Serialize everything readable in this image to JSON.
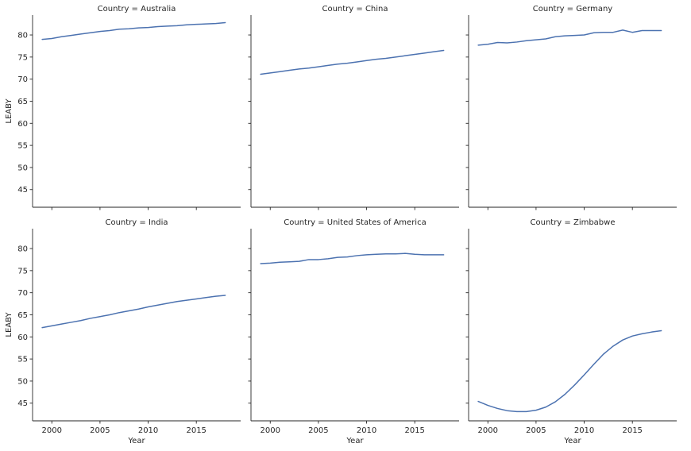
{
  "chart_data": {
    "type": "line",
    "layout": "facet-grid",
    "color": "#4c72b0",
    "xlabel": "Year",
    "ylabel": "LEABY",
    "xlim": [
      1998.0,
      2019.6
    ],
    "ylim": [
      41.0,
      84.5
    ],
    "x_ticks": [
      2000,
      2005,
      2010,
      2015
    ],
    "y_ticks": [
      45,
      50,
      55,
      60,
      65,
      70,
      75,
      80
    ],
    "grid": false,
    "facets": [
      {
        "title": "Country = Australia",
        "x": [
          1999,
          2000,
          2001,
          2002,
          2003,
          2004,
          2005,
          2006,
          2007,
          2008,
          2009,
          2010,
          2011,
          2012,
          2013,
          2014,
          2015,
          2016,
          2017,
          2018
        ],
        "y": [
          79.0,
          79.2,
          79.6,
          79.9,
          80.2,
          80.5,
          80.8,
          81.0,
          81.3,
          81.4,
          81.6,
          81.7,
          81.9,
          82.0,
          82.1,
          82.3,
          82.4,
          82.5,
          82.6,
          82.8
        ]
      },
      {
        "title": "Country = China",
        "x": [
          1999,
          2000,
          2001,
          2002,
          2003,
          2004,
          2005,
          2006,
          2007,
          2008,
          2009,
          2010,
          2011,
          2012,
          2013,
          2014,
          2015,
          2016,
          2017,
          2018
        ],
        "y": [
          71.1,
          71.4,
          71.7,
          72.0,
          72.3,
          72.5,
          72.8,
          73.1,
          73.4,
          73.6,
          73.9,
          74.2,
          74.5,
          74.7,
          75.0,
          75.3,
          75.6,
          75.9,
          76.2,
          76.5
        ]
      },
      {
        "title": "Country = Germany",
        "x": [
          1999,
          2000,
          2001,
          2002,
          2003,
          2004,
          2005,
          2006,
          2007,
          2008,
          2009,
          2010,
          2011,
          2012,
          2013,
          2014,
          2015,
          2016,
          2017,
          2018
        ],
        "y": [
          77.7,
          77.9,
          78.3,
          78.2,
          78.4,
          78.7,
          78.9,
          79.1,
          79.6,
          79.8,
          79.9,
          80.0,
          80.5,
          80.6,
          80.6,
          81.1,
          80.6,
          81.0,
          81.0,
          81.0
        ]
      },
      {
        "title": "Country = India",
        "x": [
          1999,
          2000,
          2001,
          2002,
          2003,
          2004,
          2005,
          2006,
          2007,
          2008,
          2009,
          2010,
          2011,
          2012,
          2013,
          2014,
          2015,
          2016,
          2017,
          2018
        ],
        "y": [
          62.1,
          62.5,
          62.9,
          63.3,
          63.7,
          64.2,
          64.6,
          65.0,
          65.5,
          65.9,
          66.3,
          66.8,
          67.2,
          67.6,
          68.0,
          68.3,
          68.6,
          68.9,
          69.2,
          69.4
        ]
      },
      {
        "title": "Country = United States of America",
        "x": [
          1999,
          2000,
          2001,
          2002,
          2003,
          2004,
          2005,
          2006,
          2007,
          2008,
          2009,
          2010,
          2011,
          2012,
          2013,
          2014,
          2015,
          2016,
          2017,
          2018
        ],
        "y": [
          76.6,
          76.7,
          76.9,
          77.0,
          77.1,
          77.5,
          77.5,
          77.7,
          78.0,
          78.1,
          78.4,
          78.6,
          78.7,
          78.8,
          78.8,
          78.9,
          78.7,
          78.6,
          78.6,
          78.6
        ]
      },
      {
        "title": "Country = Zimbabwe",
        "x": [
          1999,
          2000,
          2001,
          2002,
          2003,
          2004,
          2005,
          2006,
          2007,
          2008,
          2009,
          2010,
          2011,
          2012,
          2013,
          2014,
          2015,
          2016,
          2017,
          2018
        ],
        "y": [
          45.4,
          44.5,
          43.8,
          43.3,
          43.1,
          43.1,
          43.4,
          44.1,
          45.3,
          47.0,
          49.1,
          51.4,
          53.8,
          56.1,
          57.9,
          59.3,
          60.2,
          60.7,
          61.1,
          61.4
        ]
      }
    ]
  }
}
